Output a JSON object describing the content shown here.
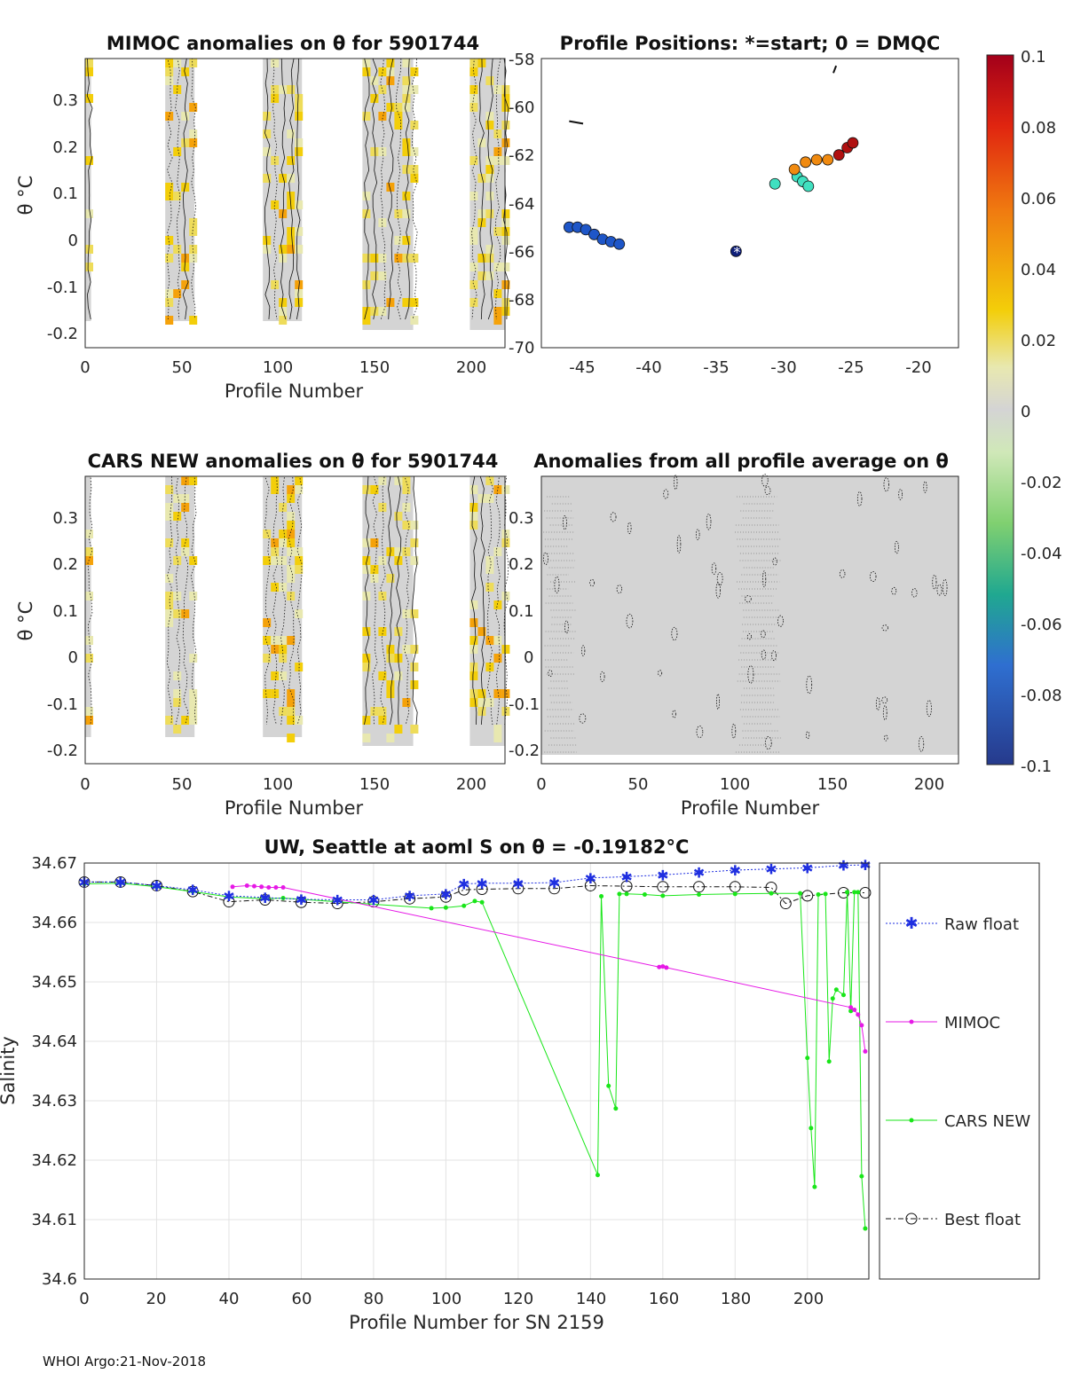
{
  "footer": "WHOI Argo:21-Nov-2018",
  "chart_data": [
    {
      "type": "heatmap",
      "title": "MIMOC anomalies on θ  for 5901744",
      "xlabel": "Profile Number",
      "ylabel": "θ °C",
      "xlim": [
        0,
        215
      ],
      "ylim": [
        -0.23,
        0.38
      ],
      "xticks": [
        "0",
        "50",
        "100",
        "150",
        "200"
      ],
      "yticks": [
        "0.3",
        "0.2",
        "0.1",
        "0",
        "-0.1",
        "-0.2"
      ],
      "data_blocks": [
        [
          0,
          3
        ],
        [
          41,
          56
        ],
        [
          91,
          111
        ],
        [
          142,
          168
        ],
        [
          197,
          215
        ]
      ]
    },
    {
      "type": "scatter",
      "title": "Profile Positions: *=start; 0 = DMQC",
      "xlim": [
        -47,
        -17
      ],
      "ylim": [
        -70,
        -58
      ],
      "xticks": [
        "-45",
        "-40",
        "-35",
        "-30",
        "-25",
        "-20"
      ],
      "yticks": [
        "-58",
        "-60",
        "-62",
        "-64",
        "-66",
        "-68",
        "-70"
      ],
      "start_marker": [
        -33,
        -66
      ],
      "groups": [
        {
          "name": "dmqc",
          "lon": [
            -45,
            -44.4,
            -43.8,
            -43.2,
            -42.6,
            -42,
            -41.4
          ],
          "lat": [
            -65,
            -65,
            -65.1,
            -65.3,
            -65.5,
            -65.6,
            -65.7
          ],
          "color": "#1e56c8"
        },
        {
          "name": "start",
          "lon": [
            -33
          ],
          "lat": [
            -66
          ],
          "color": "#0f1f7a"
        },
        {
          "name": "cyan",
          "lon": [
            -30.2,
            -28.6,
            -28.2,
            -27.8
          ],
          "lat": [
            -63.2,
            -62.9,
            -63.1,
            -63.3
          ],
          "color": "#40e0c0"
        },
        {
          "name": "orange",
          "lon": [
            -28.8,
            -28,
            -27.2,
            -26.4
          ],
          "lat": [
            -62.6,
            -62.3,
            -62.2,
            -62.2
          ],
          "color": "#f08a10"
        },
        {
          "name": "red",
          "lon": [
            -25.6,
            -25,
            -24.6
          ],
          "lat": [
            -62,
            -61.7,
            -61.5
          ],
          "color": "#b01010"
        }
      ]
    },
    {
      "type": "colorbar",
      "ticks": [
        "0.1",
        "0.08",
        "0.06",
        "0.04",
        "0.02",
        "0",
        "-0.02",
        "-0.04",
        "-0.06",
        "-0.08",
        "-0.1"
      ],
      "range": [
        -0.1,
        0.1
      ]
    },
    {
      "type": "heatmap",
      "title": "CARS NEW anomalies on θ for 5901744",
      "xlabel": "Profile Number",
      "ylabel": "θ °C",
      "xlim": [
        0,
        215
      ],
      "ylim": [
        -0.23,
        0.38
      ],
      "xticks": [
        "0",
        "50",
        "100",
        "150",
        "200"
      ],
      "yticks": [
        "0.3",
        "0.2",
        "0.1",
        "0",
        "-0.1",
        "-0.2"
      ],
      "data_blocks": [
        [
          0,
          3
        ],
        [
          41,
          56
        ],
        [
          91,
          111
        ],
        [
          142,
          168
        ],
        [
          197,
          215
        ]
      ]
    },
    {
      "type": "heatmap",
      "title": "Anomalies from all profile average on θ",
      "xlabel": "Profile Number",
      "xlim": [
        0,
        215
      ],
      "ylim": [
        -0.23,
        0.38
      ],
      "xticks": [
        "0",
        "50",
        "100",
        "150",
        "200"
      ],
      "yticks": [
        "0.3",
        "0.2",
        "0.1",
        "0",
        "-0.1",
        "-0.2"
      ]
    },
    {
      "type": "line",
      "title_prefix": "UW, Seattle at aoml S on θ = -0.19182",
      "title_unit": "°C",
      "xlabel": "Profile Number for SN 2159",
      "ylabel": "Salinity",
      "xlim": [
        0,
        217
      ],
      "ylim": [
        34.6,
        34.67
      ],
      "xticks": [
        "0",
        "20",
        "40",
        "60",
        "80",
        "100",
        "120",
        "140",
        "160",
        "180",
        "200"
      ],
      "yticks": [
        "34.67",
        "34.66",
        "34.65",
        "34.64",
        "34.63",
        "34.62",
        "34.61",
        "34.6"
      ],
      "legend_position": "right",
      "series": [
        {
          "name": "Raw float",
          "color": "#1f2fe0",
          "marker": "star",
          "x": [
            0,
            10,
            20,
            30,
            40,
            50,
            60,
            70,
            80,
            90,
            100,
            105,
            110,
            120,
            130,
            140,
            150,
            160,
            170,
            180,
            190,
            200,
            210,
            216
          ],
          "y": [
            34.6668,
            34.6668,
            34.6662,
            34.6655,
            34.6645,
            34.6642,
            34.6639,
            34.6638,
            34.6638,
            34.6645,
            34.6648,
            34.6665,
            34.6666,
            34.6666,
            34.6667,
            34.6675,
            34.6677,
            34.668,
            34.6684,
            34.6688,
            34.669,
            34.6692,
            34.6696,
            34.6697
          ]
        },
        {
          "name": "MIMOC",
          "color": "#e619e6",
          "marker": "dot",
          "x": [
            41,
            45,
            47,
            49,
            51,
            53,
            55,
            159,
            160,
            161,
            212,
            213,
            214,
            215,
            216
          ],
          "y": [
            34.666,
            34.6662,
            34.6661,
            34.666,
            34.6659,
            34.6659,
            34.6659,
            34.6525,
            34.6526,
            34.6524,
            34.6457,
            34.6453,
            34.6445,
            34.6427,
            34.6383
          ]
        },
        {
          "name": "CARS NEW",
          "color": "#19e619",
          "marker": "dot",
          "x": [
            0,
            10,
            20,
            30,
            40,
            50,
            55,
            96,
            100,
            105,
            108,
            110,
            142,
            143,
            145,
            147,
            148,
            150,
            155,
            160,
            170,
            180,
            190,
            198,
            200,
            201,
            202,
            203,
            205,
            206,
            207,
            208,
            210,
            211,
            212,
            213,
            214,
            215,
            216
          ],
          "y": [
            34.6665,
            34.6666,
            34.666,
            34.6652,
            34.6643,
            34.664,
            34.6641,
            34.6624,
            34.6625,
            34.6628,
            34.6636,
            34.6634,
            34.6175,
            34.6644,
            34.6325,
            34.6287,
            34.6648,
            34.6648,
            34.6647,
            34.6645,
            34.6647,
            34.6648,
            34.6649,
            34.6649,
            34.6372,
            34.6254,
            34.6155,
            34.6647,
            34.6648,
            34.6366,
            34.6472,
            34.6487,
            34.6478,
            34.6651,
            34.6451,
            34.6651,
            34.6651,
            34.6173,
            34.6085
          ]
        },
        {
          "name": "Best float",
          "color": "#111111",
          "marker": "circle",
          "x": [
            0,
            10,
            20,
            30,
            40,
            50,
            60,
            70,
            80,
            90,
            100,
            105,
            110,
            120,
            130,
            140,
            150,
            160,
            170,
            180,
            190,
            194,
            200,
            210,
            216
          ],
          "y": [
            34.6668,
            34.6668,
            34.6662,
            34.6652,
            34.6635,
            34.6638,
            34.6634,
            34.6632,
            34.6635,
            34.664,
            34.6643,
            34.6655,
            34.6656,
            34.6657,
            34.6657,
            34.6662,
            34.6661,
            34.666,
            34.666,
            34.666,
            34.6659,
            34.6632,
            34.6645,
            34.665,
            34.665
          ]
        }
      ]
    }
  ]
}
